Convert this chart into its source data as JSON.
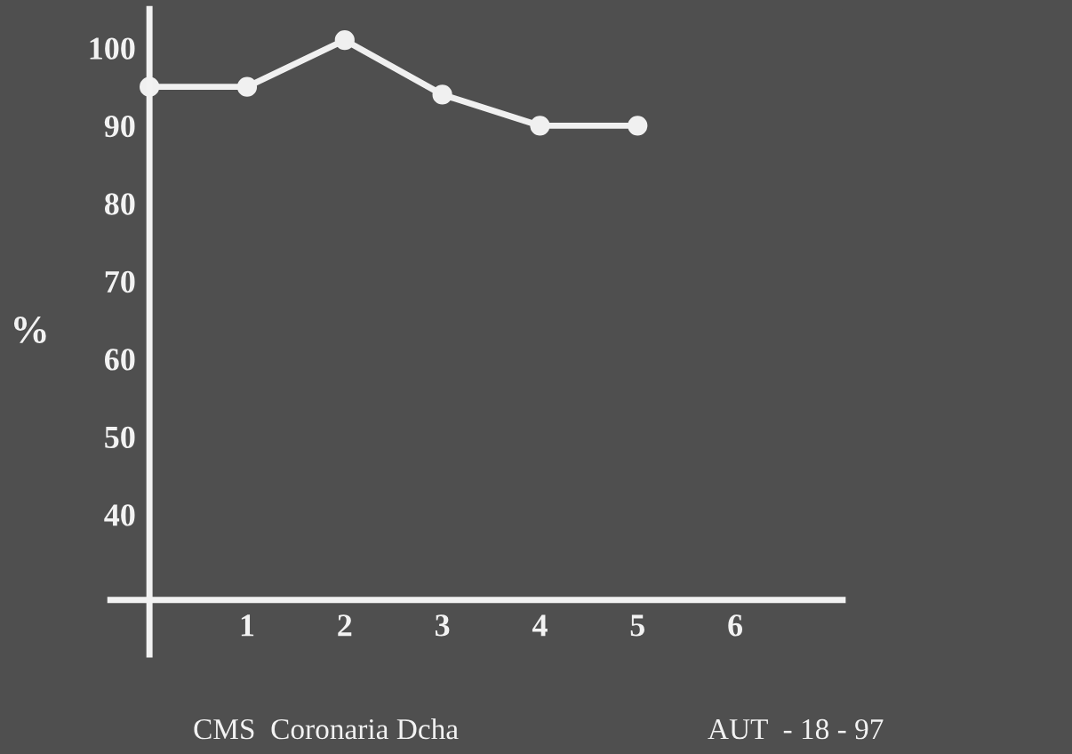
{
  "chart_data": {
    "type": "line",
    "ylabel": "%",
    "x": [
      0,
      1,
      2,
      3,
      4,
      5
    ],
    "series": [
      {
        "color": "#f0f0f0",
        "values": [
          95,
          95,
          101,
          94,
          90,
          90
        ]
      }
    ],
    "xlim": [
      -0.4,
      7.1
    ],
    "ylim": [
      22,
      105
    ],
    "xticks": [
      1,
      2,
      3,
      4,
      5,
      6
    ],
    "yticks": [
      40,
      50,
      60,
      70,
      80,
      90,
      100
    ],
    "marker": "circle",
    "line_style": "solid",
    "grid": false,
    "legend": false,
    "annotations": [
      "CMS  Coronaria Dcha",
      "AUT  - 18 - 97"
    ]
  }
}
